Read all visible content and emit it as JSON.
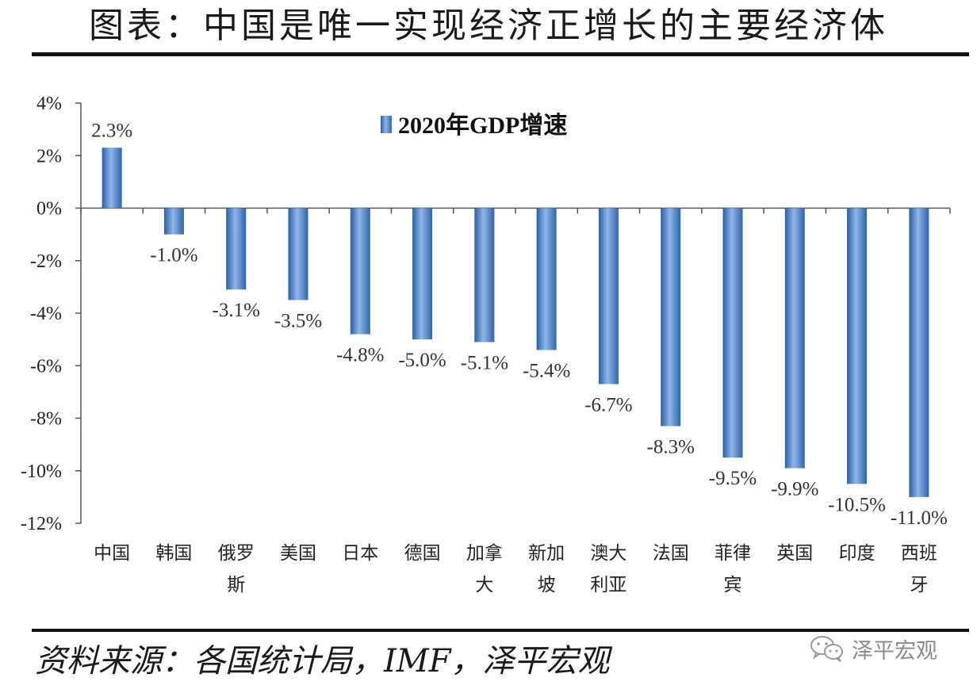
{
  "title": "图表：中国是唯一实现经济正增长的主要经济体",
  "source": "资料来源：各国统计局，IMF，泽平宏观",
  "watermark": {
    "text": "泽平宏观",
    "icon": "wechat-icon"
  },
  "chart_data": {
    "type": "bar",
    "categories": [
      "中国",
      "韩国",
      "俄罗斯",
      "美国",
      "日本",
      "德国",
      "加拿大",
      "新加坡",
      "澳大利亚",
      "法国",
      "菲律宾",
      "英国",
      "印度",
      "西班牙"
    ],
    "category_lines": [
      [
        "中国"
      ],
      [
        "韩国"
      ],
      [
        "俄罗",
        "斯"
      ],
      [
        "美国"
      ],
      [
        "日本"
      ],
      [
        "德国"
      ],
      [
        "加拿",
        "大"
      ],
      [
        "新加",
        "坡"
      ],
      [
        "澳大",
        "利亚"
      ],
      [
        "法国"
      ],
      [
        "菲律",
        "宾"
      ],
      [
        "英国"
      ],
      [
        "印度"
      ],
      [
        "西班",
        "牙"
      ]
    ],
    "series": [
      {
        "name": "2020年GDP增速",
        "values": [
          2.3,
          -1.0,
          -3.1,
          -3.5,
          -4.8,
          -5.0,
          -5.1,
          -5.4,
          -6.7,
          -8.3,
          -9.5,
          -9.9,
          -10.5,
          -11.0
        ]
      }
    ],
    "data_labels": [
      "2.3%",
      "-1.0%",
      "-3.1%",
      "-3.5%",
      "-4.8%",
      "-5.0%",
      "-5.1%",
      "-5.4%",
      "-6.7%",
      "-8.3%",
      "-9.5%",
      "-9.9%",
      "-10.5%",
      "-11.0%"
    ],
    "y_ticks": [
      4,
      2,
      0,
      -2,
      -4,
      -6,
      -8,
      -10,
      -12
    ],
    "y_tick_labels": [
      "4%",
      "2%",
      "0%",
      "-2%",
      "-4%",
      "-6%",
      "-8%",
      "-10%",
      "-12%"
    ],
    "ylim": [
      -12,
      4
    ],
    "legend": "top-center",
    "grid": false,
    "bar_color": "#4a7ec4"
  }
}
